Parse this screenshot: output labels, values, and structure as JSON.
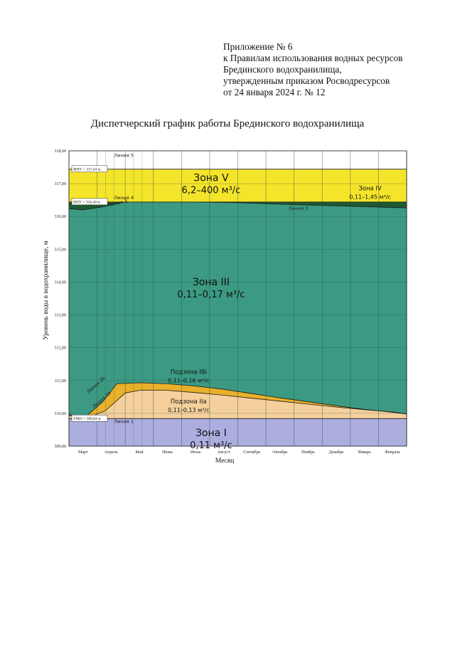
{
  "appendix": {
    "lines": [
      "Приложение № 6",
      "к Правилам использования водных ресурсов",
      "Брединского водохранилища,",
      "утвержденным приказом Росводресурсов",
      "от 24 января 2024 г. № 12"
    ]
  },
  "colors": {
    "zone5": "#f4e52a",
    "zone4": "#1d5a32",
    "zone3": "#3c9a82",
    "zone2b": "#e9b02a",
    "zone2a": "#f5d09c",
    "zone1": "#adaee0"
  },
  "chart_data": {
    "type": "area",
    "title": "Диспетчерский график работы Брединского водохранилища",
    "xlabel": "Месяц",
    "ylabel": "Уровень воды в водохранилище, м",
    "ylim": [
      309.0,
      318.0
    ],
    "y_ticks": [
      "309,00",
      "310,00",
      "311,00",
      "312,00",
      "313,00",
      "314,00",
      "315,00",
      "316,00",
      "317,00",
      "318,00"
    ],
    "x_ticks": [
      "Март",
      "Апрель",
      "Май",
      "Июнь",
      "Июль",
      "Август",
      "Сентябрь",
      "Октябрь",
      "Ноябрь",
      "Декабрь",
      "Январь",
      "Февраль"
    ],
    "grid": true,
    "reference_lines": [
      {
        "label": "ФПУ = 317,44 м",
        "value": 317.44
      },
      {
        "label": "НПУ = 316,44 м",
        "value": 316.44
      },
      {
        "label": "УМО = 309,84 м",
        "value": 309.84
      }
    ],
    "series": [
      {
        "name": "Линия 5",
        "x": [
          0,
          12
        ],
        "values": [
          317.44,
          317.44
        ]
      },
      {
        "name": "Линия 4",
        "x": [
          0,
          12
        ],
        "values": [
          316.44,
          316.44
        ]
      },
      {
        "name": "Линия 3",
        "x": [
          0,
          0.5,
          1.25,
          1.9,
          4.5,
          6,
          8,
          10,
          12
        ],
        "values": [
          316.24,
          316.2,
          316.3,
          316.44,
          316.44,
          316.42,
          316.36,
          316.31,
          316.26
        ]
      },
      {
        "name": "Линия 2b",
        "x": [
          0,
          0.6,
          1.2,
          1.7,
          2.5,
          3.5,
          4.5,
          5.5,
          6.5,
          7.5,
          8.5,
          9.5,
          10.5,
          11.5,
          12
        ],
        "values": [
          309.96,
          309.9,
          310.35,
          310.9,
          310.93,
          310.9,
          310.83,
          310.73,
          310.6,
          310.47,
          310.35,
          310.23,
          310.12,
          310.03,
          309.98
        ]
      },
      {
        "name": "Линия 2a",
        "x": [
          0,
          0.6,
          1.3,
          2.0,
          2.5,
          3.5,
          4.5,
          5.5,
          6.5,
          7.5,
          8.5,
          9.5,
          10.5,
          11.5,
          12
        ],
        "values": [
          309.94,
          309.84,
          310.08,
          310.62,
          310.7,
          310.7,
          310.63,
          310.55,
          310.46,
          310.37,
          310.28,
          310.19,
          310.11,
          310.04,
          309.98
        ]
      },
      {
        "name": "Линия 1",
        "x": [
          0,
          12
        ],
        "values": [
          309.84,
          309.84
        ]
      }
    ],
    "line_labels": [
      {
        "text": "Линия 5",
        "x": 1.6,
        "y": 317.82
      },
      {
        "text": "Линия 4",
        "x": 1.6,
        "y": 316.52
      },
      {
        "text": "Линия 3",
        "x": 1.4,
        "y": 316.3
      },
      {
        "text": "Линия 3",
        "x": 7.8,
        "y": 316.2
      },
      {
        "text": "Линия 2b",
        "x": 0.7,
        "y": 310.6
      },
      {
        "text": "Линия 2a",
        "x": 0.9,
        "y": 310.15
      },
      {
        "text": "Линия 1",
        "x": 1.6,
        "y": 309.7
      }
    ],
    "zones": [
      {
        "name": "Зона V",
        "range": "6,2–400 м³/с",
        "x": 5.05,
        "y": 317.08
      },
      {
        "name": "Зона IV",
        "range": "0,11–1,45 м³/с",
        "x": 10.7,
        "y": 316.8
      },
      {
        "name": "Зона III",
        "range": "0,11–0,17 м³/с",
        "x": 5.05,
        "y": 313.9
      },
      {
        "name": "Подзона IIb",
        "range": "0,11–0,16 м³/с",
        "x": 4.25,
        "y": 311.2
      },
      {
        "name": "Подзона IIa",
        "range": "0,11–0,13 м³/с",
        "x": 4.25,
        "y": 310.3
      },
      {
        "name": "Зона I",
        "range": "0,11 м³/с",
        "x": 5.05,
        "y": 309.3
      }
    ]
  }
}
